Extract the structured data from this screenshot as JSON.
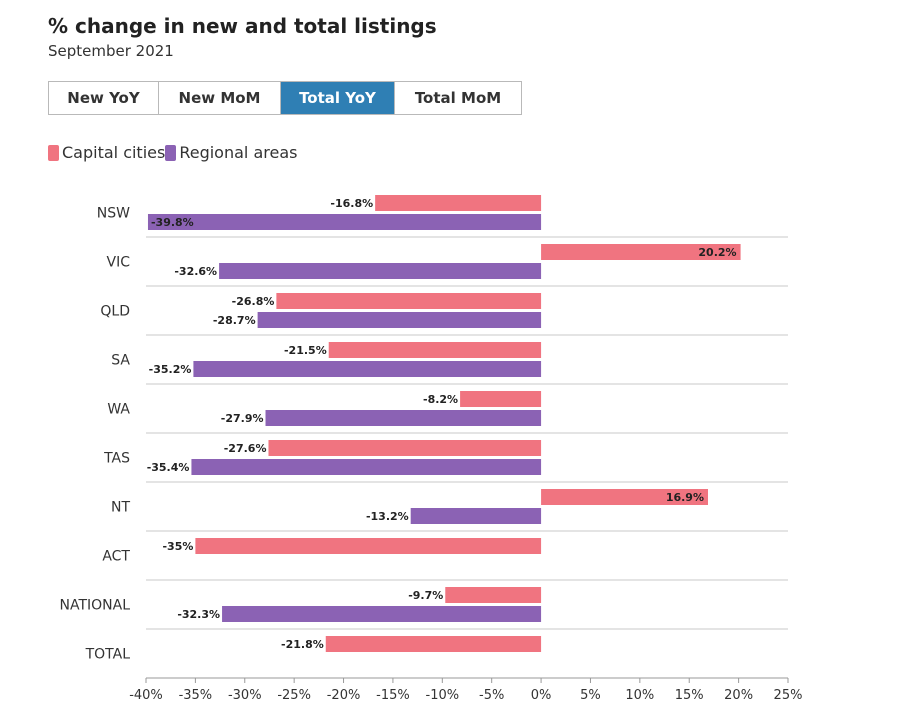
{
  "header": {
    "title": "% change in new and total listings",
    "subtitle": "September 2021"
  },
  "tabs": [
    {
      "label": "New YoY",
      "active": false
    },
    {
      "label": "New MoM",
      "active": false
    },
    {
      "label": "Total YoY",
      "active": true
    },
    {
      "label": "Total MoM",
      "active": false
    }
  ],
  "legend": [
    {
      "label": "Capital cities",
      "color": "#f07480"
    },
    {
      "label": "Regional areas",
      "color": "#8b62b4"
    }
  ],
  "chart_data": {
    "type": "bar",
    "orientation": "horizontal",
    "categories": [
      "NSW",
      "VIC",
      "QLD",
      "SA",
      "WA",
      "TAS",
      "NT",
      "ACT",
      "NATIONAL",
      "TOTAL"
    ],
    "series": [
      {
        "name": "Capital cities",
        "color": "#f07480",
        "values": [
          -16.8,
          20.2,
          -26.8,
          -21.5,
          -8.2,
          -27.6,
          16.9,
          -35,
          -9.7,
          -21.8
        ],
        "labels": [
          "-16.8%",
          "20.2%",
          "-26.8%",
          "-21.5%",
          "-8.2%",
          "-27.6%",
          "16.9%",
          "-35%",
          "-9.7%",
          "-21.8%"
        ]
      },
      {
        "name": "Regional areas",
        "color": "#8b62b4",
        "values": [
          -39.8,
          -32.6,
          -28.7,
          -35.2,
          -27.9,
          -35.4,
          -13.2,
          null,
          -32.3,
          null
        ],
        "labels": [
          "-39.8%",
          "-32.6%",
          "-28.7%",
          "-35.2%",
          "-27.9%",
          "-35.4%",
          "-13.2%",
          null,
          "-32.3%",
          null
        ]
      }
    ],
    "xlim": [
      -40,
      25
    ],
    "xticks": [
      -40,
      -35,
      -30,
      -25,
      -20,
      -15,
      -10,
      -5,
      0,
      5,
      10,
      15,
      20,
      25
    ],
    "xtick_labels": [
      "-40%",
      "-35%",
      "-30%",
      "-25%",
      "-20%",
      "-15%",
      "-10%",
      "-5%",
      "0%",
      "5%",
      "10%",
      "15%",
      "20%",
      "25%"
    ],
    "grid": false,
    "legend_position": "top-left"
  }
}
